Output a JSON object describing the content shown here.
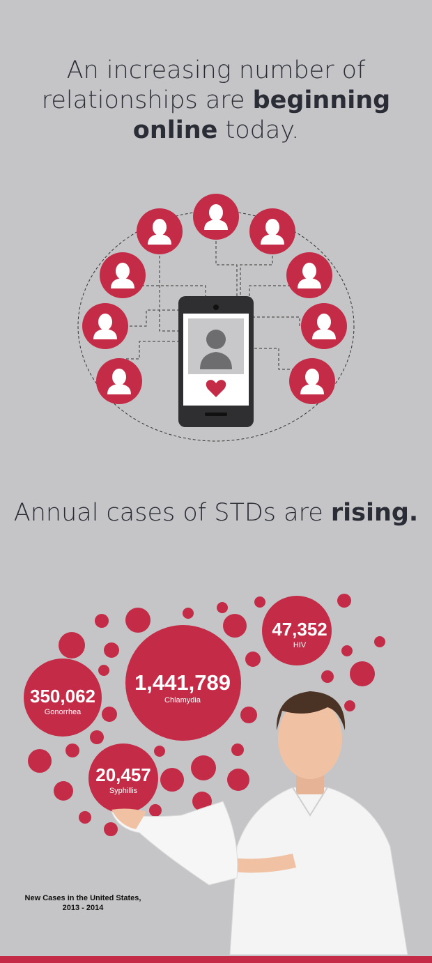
{
  "section1": {
    "headline_pre": "An increasing number of relationships are ",
    "headline_bold1": "beginning",
    "headline_bold2": "online",
    "headline_post": " today."
  },
  "section2": {
    "headline_pre": "Annual cases of STDs are ",
    "headline_bold": "rising."
  },
  "colors": {
    "accent": "#c42b47",
    "background": "#c5c5c7",
    "phone": "#2f2f31"
  },
  "stds": [
    {
      "value": "1,441,789",
      "name": "Chlamydia"
    },
    {
      "value": "350,062",
      "name": "Gonorrhea"
    },
    {
      "value": "47,352",
      "name": "HIV"
    },
    {
      "value": "20,457",
      "name": "Syphillis"
    }
  ],
  "caption": "New Cases in the United States, 2013 - 2014"
}
